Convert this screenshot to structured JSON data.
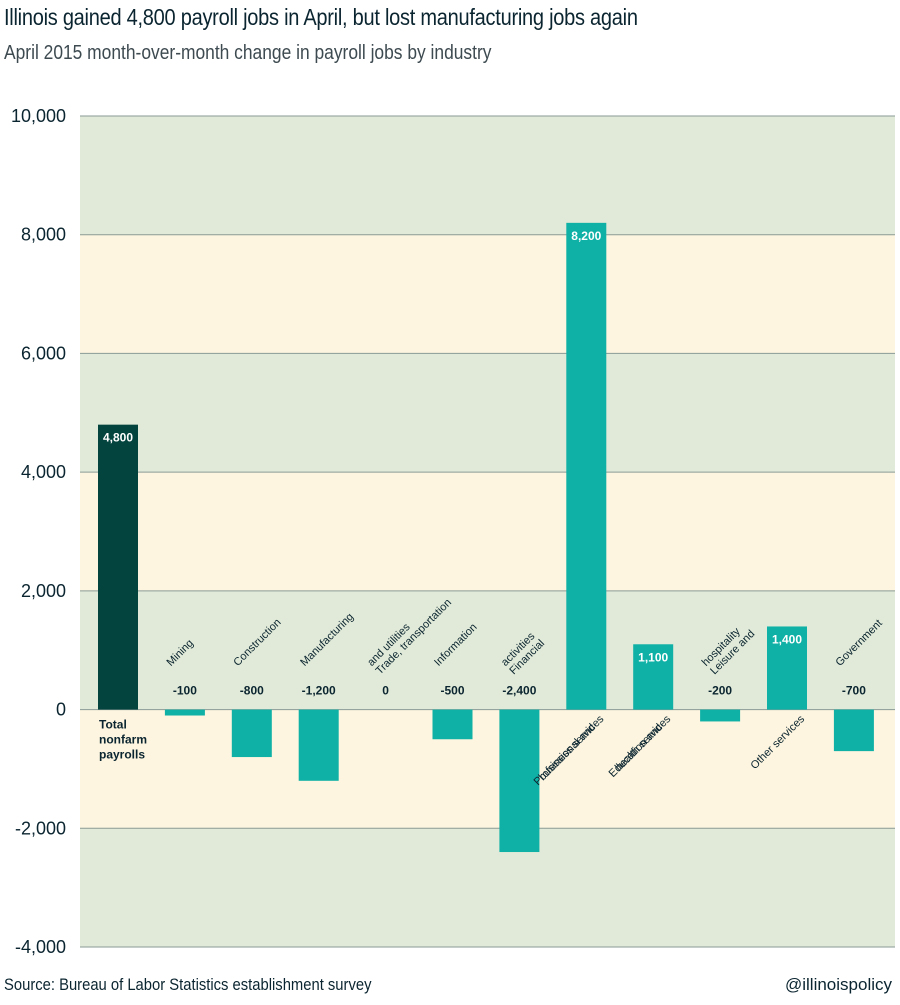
{
  "title": "Illinois gained 4,800 payroll jobs in April, but lost manufacturing jobs again",
  "subtitle": "April 2015 month-over-month change in payroll jobs by industry",
  "source": "Source: Bureau of Labor Statistics establishment survey",
  "credit": "@illinoispolicy",
  "colors": {
    "total_bar": "#04443f",
    "industry_bar": "#0fb1a6",
    "band_green": "#e1ead8",
    "band_yellow": "#fdf5df",
    "gridline": "#8a9a96"
  },
  "chart_data": {
    "type": "bar",
    "ylim": [
      -4000,
      10000
    ],
    "yticks": [
      -4000,
      -2000,
      0,
      2000,
      4000,
      6000,
      8000,
      10000
    ],
    "ytick_labels": [
      "-4,000",
      "-2,000",
      "0",
      "2,000",
      "4,000",
      "6,000",
      "8,000",
      "10,000"
    ],
    "grid": true,
    "categories": [
      [
        "Total",
        "nonfarm",
        "payrolls"
      ],
      [
        "Mining"
      ],
      [
        "Construction"
      ],
      [
        "Manufacturing"
      ],
      [
        "Trade, transportation",
        "and utilities"
      ],
      [
        "Information"
      ],
      [
        "Financial",
        "activities"
      ],
      [
        "Professional and",
        "business services"
      ],
      [
        "Education and",
        "health services"
      ],
      [
        "Leisure and",
        "hospitality"
      ],
      [
        "Other services"
      ],
      [
        "Government"
      ]
    ],
    "values": [
      4800,
      -100,
      -800,
      -1200,
      0,
      -500,
      -2400,
      8200,
      1100,
      -200,
      1400,
      -700
    ],
    "value_labels": [
      "4,800",
      "-100",
      "-800",
      "-1,200",
      "0",
      "-500",
      "-2,400",
      "8,200",
      "1,100",
      "-200",
      "1,400",
      "-700"
    ]
  }
}
